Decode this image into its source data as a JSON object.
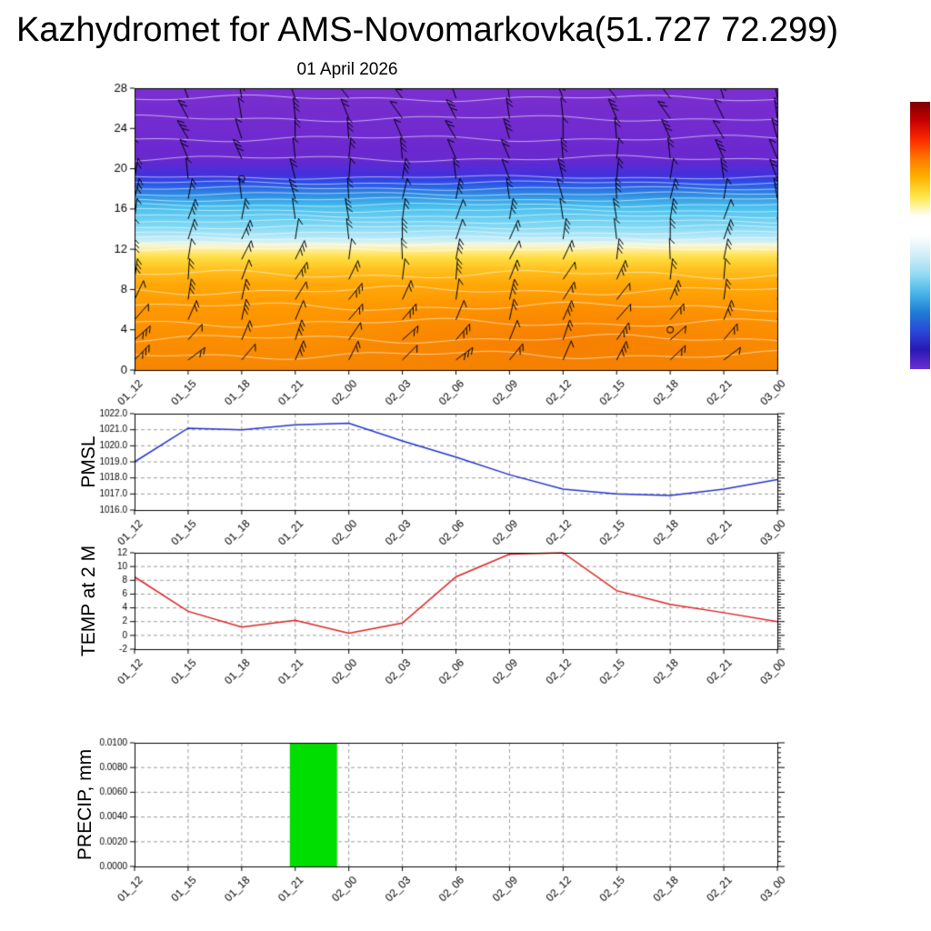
{
  "header": {
    "title": "Kazhydromet for AMS-Novomarkovka(51.727 72.299)",
    "date": "01 April 2026"
  },
  "time_labels": [
    "01_12",
    "01_15",
    "01_18",
    "01_21",
    "02_00",
    "02_03",
    "02_06",
    "02_09",
    "02_12",
    "02_15",
    "02_18",
    "02_21",
    "03_00"
  ],
  "colorbar": {
    "stops": [
      "#7a0000",
      "#c80000",
      "#ff2a00",
      "#ff7a00",
      "#ffb400",
      "#ffe84d",
      "#ffffff",
      "#ffffff",
      "#d2eef8",
      "#96dcf2",
      "#4ab6e8",
      "#1f7fd6",
      "#2a48d8",
      "#2a18b4",
      "#6c2fd2"
    ]
  },
  "chart_data": [
    {
      "type": "heatmap",
      "name": "upper-air-temperature-and-wind",
      "title": "01 April 2026",
      "xlabel": "",
      "ylabel": "",
      "ylim": [
        0,
        28
      ],
      "ytick_labels": [
        "0",
        "4",
        "8",
        "12",
        "16",
        "20",
        "24",
        "28"
      ],
      "gradient": [
        {
          "level": 28,
          "color": "#7b2fd0"
        },
        {
          "level": 21,
          "color": "#6a28cf"
        },
        {
          "level": 19.4,
          "color": "#4330dc"
        },
        {
          "level": 18.6,
          "color": "#2a50e8"
        },
        {
          "level": 17.4,
          "color": "#2e8ee2"
        },
        {
          "level": 16.2,
          "color": "#49c0ee"
        },
        {
          "level": 14.2,
          "color": "#84daf4"
        },
        {
          "level": 13,
          "color": "#c2ecf8"
        },
        {
          "level": 12.4,
          "color": "#f4f8da"
        },
        {
          "level": 12,
          "color": "#ffefa0"
        },
        {
          "level": 11.2,
          "color": "#ffdf45"
        },
        {
          "level": 10,
          "color": "#ffc11e"
        },
        {
          "level": 8.5,
          "color": "#ffa808"
        },
        {
          "level": 6,
          "color": "#ff9800"
        },
        {
          "level": 0,
          "color": "#f68600"
        }
      ],
      "overlays": [
        "wind-barbs",
        "white-contour-lines"
      ],
      "calm_circles": [
        {
          "time": "01_18",
          "level": 19
        },
        {
          "time": "02_18",
          "level": 4
        }
      ],
      "warm_patch": {
        "time_center": "02_12",
        "level_center": 3
      }
    },
    {
      "type": "line",
      "name": "PMSL",
      "color": "#2233cc",
      "ylim": [
        1016,
        1022
      ],
      "ytick_labels": [
        "1016.0",
        "1017.0",
        "1018.0",
        "1019.0",
        "1020.0",
        "1021.0",
        "1022.0"
      ],
      "values": [
        1019.0,
        1021.1,
        1021.0,
        1021.3,
        1021.4,
        1020.3,
        1019.3,
        1018.2,
        1017.3,
        1017.0,
        1016.9,
        1017.3,
        1017.9
      ]
    },
    {
      "type": "line",
      "name": "TEMP at 2 M",
      "color": "#dd2222",
      "ylim": [
        -2,
        12
      ],
      "ytick_labels": [
        "-2",
        "0",
        "2",
        "4",
        "6",
        "8",
        "10",
        "12"
      ],
      "values": [
        8.5,
        3.5,
        1.2,
        2.2,
        0.3,
        1.8,
        8.5,
        11.8,
        12.0,
        6.5,
        4.5,
        3.3,
        2.0
      ]
    },
    {
      "type": "bar",
      "name": "PRECIP, mm",
      "color": "#00dd00",
      "ylim": [
        0,
        0.01
      ],
      "ytick_labels": [
        "0.0000",
        "0.0020",
        "0.0040",
        "0.0060",
        "0.0080",
        "0.0100"
      ],
      "values": [
        0,
        0,
        0,
        0.01,
        0,
        0,
        0,
        0,
        0,
        0,
        0,
        0,
        0
      ],
      "bar_time": "01_21"
    }
  ]
}
